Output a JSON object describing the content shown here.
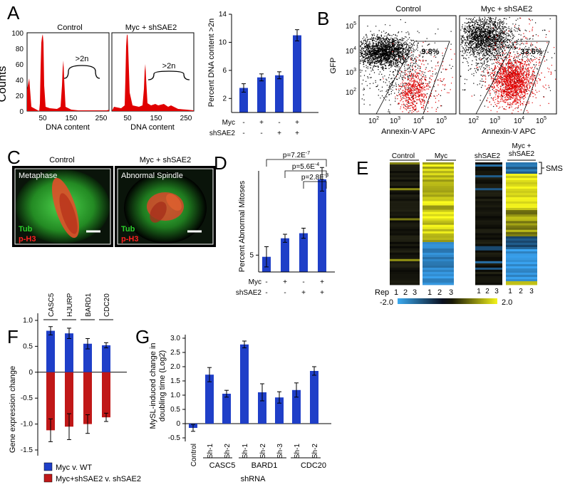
{
  "panel_letters": [
    "A",
    "B",
    "C",
    "D",
    "E",
    "F",
    "G"
  ],
  "panelA": {
    "histograms": [
      {
        "title": "Control",
        "gt2n": ">2n"
      },
      {
        "title": "Myc + shSAE2",
        "gt2n": ">2n"
      }
    ],
    "ylabel": "Counts",
    "xlabel": "DNA content",
    "yticks": [
      "0",
      "20",
      "40",
      "60",
      "80",
      "100"
    ],
    "xticks": [
      "50",
      "150",
      "250"
    ]
  },
  "panelB": {
    "plots": [
      {
        "title": "Control",
        "percent": "9.8%"
      },
      {
        "title": "Myc + shSAE2",
        "percent": "33.6%"
      }
    ],
    "ylabel": "GFP",
    "xlabel": "Annexin-V APC",
    "yticks_base": [
      "10",
      "10",
      "10",
      "10"
    ],
    "yticks_exp": [
      "2",
      "3",
      "4",
      "5"
    ],
    "xticks_base": [
      "10",
      "10",
      "10",
      "10"
    ],
    "xticks_exp": [
      "2",
      "3",
      "4",
      "5"
    ]
  },
  "panelC": {
    "images": [
      {
        "title": "Control",
        "inner": "Metaphase",
        "stain1": "Tub",
        "stain2": "p-H3"
      },
      {
        "title": "Myc + shSAE2",
        "inner": "Abnormal Spindle",
        "stain1": "Tub",
        "stain2": "p-H3"
      }
    ]
  },
  "panelE": {
    "groups": [
      "Control",
      "Myc",
      "shSAE2",
      "Myc +",
      "shSAE2"
    ],
    "sms": "SMS",
    "rep_label": "Rep",
    "reps": [
      "1",
      "2",
      "3",
      "1",
      "2",
      "3",
      "1",
      "2",
      "3",
      "1",
      "2",
      "3"
    ],
    "scale_min": "-2.0",
    "scale_max": "2.0"
  },
  "conditions": {
    "myc_label": "Myc",
    "shsae2_label": "shSAE2",
    "myc": [
      "-",
      "+",
      "-",
      "+"
    ],
    "shsae2": [
      "-",
      "-",
      "+",
      "+"
    ]
  },
  "colors": {
    "bar_blue": "#1f3fc8",
    "bar_red": "#c01818",
    "hist_red": "#e00000"
  },
  "chart_data": [
    {
      "id": "A-bar",
      "type": "bar",
      "categories": [
        "1",
        "2",
        "3",
        "4"
      ],
      "values": [
        3.5,
        5.0,
        5.3,
        11.0
      ],
      "errors": [
        0.6,
        0.5,
        0.5,
        0.8
      ],
      "ylabel": "Percent DNA content >2n",
      "yticks": [
        "2",
        "6",
        "10",
        "14"
      ],
      "ylim": [
        0,
        14
      ]
    },
    {
      "id": "D",
      "type": "bar",
      "categories": [
        "1",
        "2",
        "3",
        "4"
      ],
      "values": [
        4.5,
        10.0,
        11.5,
        27.5
      ],
      "errors": [
        3.0,
        1.2,
        1.5,
        3.5
      ],
      "ylabel": "Percent Abnormal Mitoses",
      "yticks": [
        "5"
      ],
      "ylim": [
        0,
        30
      ],
      "pvalues": [
        {
          "base": "p=7.2E",
          "exp": "-7"
        },
        {
          "base": "p=5.6E",
          "exp": "-4"
        },
        {
          "base": "p=2.8E",
          "exp": "-3"
        }
      ]
    },
    {
      "id": "F",
      "type": "bar",
      "categories": [
        "CASC5",
        "HJURP",
        "BARD1",
        "CDC20"
      ],
      "series": [
        {
          "name": "Myc v. WT",
          "values": [
            0.8,
            0.75,
            0.55,
            0.52
          ],
          "errors": [
            0.08,
            0.1,
            0.1,
            0.05
          ]
        },
        {
          "name": "Myc+shSAE2 v. shSAE2",
          "values": [
            -1.12,
            -1.05,
            -1.0,
            -0.87
          ],
          "errors": [
            0.22,
            0.25,
            0.18,
            0.08
          ]
        }
      ],
      "ylabel": "Gene expression change",
      "yticks": [
        "1.0",
        "0.5",
        "0",
        "-0.5",
        "-1.0",
        "-1.5"
      ],
      "ylim": [
        -1.5,
        1.0
      ]
    },
    {
      "id": "G",
      "type": "bar",
      "categories": [
        "Control",
        "Sh-1",
        "Sh-2",
        "Sh-1",
        "Sh-2",
        "Sh-3",
        "Sh-1",
        "Sh-2"
      ],
      "groups": [
        "CASC5",
        "BARD1",
        "CDC20"
      ],
      "values": [
        -0.15,
        1.72,
        1.05,
        2.78,
        1.1,
        0.92,
        1.18,
        1.85
      ],
      "errors": [
        0.12,
        0.25,
        0.12,
        0.12,
        0.3,
        0.2,
        0.25,
        0.15
      ],
      "ylabel": [
        "MySL-induced change in",
        "doubling time (Log2)"
      ],
      "xlabel": "shRNA",
      "yticks": [
        "3.0",
        "2.5",
        "2.0",
        "1.5",
        "1.0",
        "0.5",
        "0",
        "-0.5"
      ],
      "ylim": [
        -0.5,
        3.0
      ]
    }
  ]
}
